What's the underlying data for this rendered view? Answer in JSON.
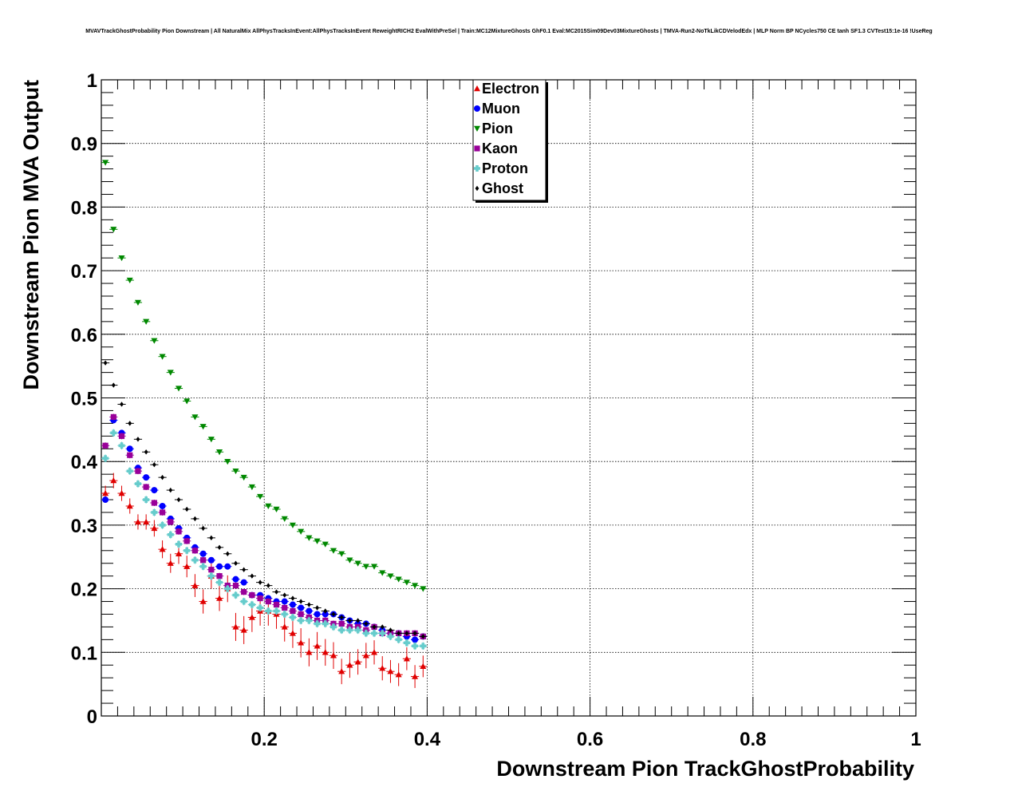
{
  "title": "MVAVTrackGhostProbability Pion Downstream | All NaturalMix AllPhysTracksInEvent:AllPhysTracksInEvent ReweightRICH2 EvalWithPreSel | Train:MC12MixtureGhosts GhF0.1 Eval:MC2015Sim09Dev03MixtureGhosts | TMVA-Run2-NoTkLikCDVelodEdx | MLP Norm BP NCycles750 CE tanh SF1.3 CVTest15:1e-16 !UseReg",
  "chart_data": {
    "type": "scatter",
    "title": "MVAVTrackGhostProbability Pion Downstream | All NaturalMix AllPhysTracksInEvent:AllPhysTracksInEvent ReweightRICH2 EvalWithPreSel | Train:MC12MixtureGhosts GhF0.1 Eval:MC2015Sim09Dev03MixtureGhosts | TMVA-Run2-NoTkLikCDVelodEdx | MLP Norm BP NCycles750 CE tanh SF1.3 CVTest15:1e-16 !UseReg",
    "xlabel": "Downstream Pion TrackGhostProbability",
    "ylabel": "Downstream Pion MVA Output",
    "xlim": [
      0.0,
      1.0
    ],
    "ylim": [
      0.0,
      1.0
    ],
    "x_ticks": [
      "0.2",
      "0.4",
      "0.6",
      "0.8",
      "1"
    ],
    "y_ticks": [
      "0",
      "0.1",
      "0.2",
      "0.3",
      "0.4",
      "0.5",
      "0.6",
      "0.7",
      "0.8",
      "0.9",
      "1"
    ],
    "grid": true,
    "legend_position": "top-center",
    "x": [
      0.005,
      0.015,
      0.025,
      0.035,
      0.045,
      0.055,
      0.065,
      0.075,
      0.085,
      0.095,
      0.105,
      0.115,
      0.125,
      0.135,
      0.145,
      0.155,
      0.165,
      0.175,
      0.185,
      0.195,
      0.205,
      0.215,
      0.225,
      0.235,
      0.245,
      0.255,
      0.265,
      0.275,
      0.285,
      0.295,
      0.305,
      0.315,
      0.325,
      0.335,
      0.345,
      0.355,
      0.365,
      0.375,
      0.385,
      0.395
    ],
    "series": [
      {
        "name": "Electron",
        "color": "#e00000",
        "marker": "triangle-up",
        "values": [
          0.35,
          0.37,
          0.35,
          0.33,
          0.305,
          0.305,
          0.295,
          0.262,
          0.24,
          0.255,
          0.235,
          0.205,
          0.18,
          0.22,
          0.185,
          0.2,
          0.14,
          0.135,
          0.155,
          0.165,
          0.165,
          0.16,
          0.14,
          0.13,
          0.115,
          0.1,
          0.11,
          0.1,
          0.095,
          0.07,
          0.08,
          0.085,
          0.095,
          0.1,
          0.075,
          0.07,
          0.065,
          0.09,
          0.062,
          0.078
        ],
        "errors": [
          0.012,
          0.012,
          0.012,
          0.012,
          0.012,
          0.012,
          0.013,
          0.014,
          0.015,
          0.016,
          0.017,
          0.018,
          0.019,
          0.02,
          0.02,
          0.021,
          0.022,
          0.022,
          0.023,
          0.023,
          0.023,
          0.023,
          0.023,
          0.023,
          0.023,
          0.022,
          0.022,
          0.021,
          0.021,
          0.02,
          0.02,
          0.02,
          0.02,
          0.019,
          0.019,
          0.018,
          0.018,
          0.018,
          0.018,
          0.017
        ]
      },
      {
        "name": "Muon",
        "color": "#0000ff",
        "marker": "circle",
        "values": [
          0.34,
          0.465,
          0.445,
          0.42,
          0.39,
          0.375,
          0.355,
          0.33,
          0.31,
          0.295,
          0.28,
          0.265,
          0.255,
          0.245,
          0.235,
          0.235,
          0.215,
          0.21,
          0.19,
          0.19,
          0.185,
          0.18,
          0.18,
          0.175,
          0.17,
          0.165,
          0.16,
          0.16,
          0.16,
          0.155,
          0.15,
          0.145,
          0.145,
          0.14,
          0.135,
          0.13,
          0.13,
          0.125,
          0.12,
          0.125
        ],
        "errors": [
          0.004,
          0.004,
          0.004,
          0.004,
          0.004,
          0.004,
          0.004,
          0.004,
          0.004,
          0.004,
          0.004,
          0.004,
          0.004,
          0.004,
          0.004,
          0.004,
          0.004,
          0.004,
          0.004,
          0.004,
          0.004,
          0.004,
          0.004,
          0.004,
          0.004,
          0.004,
          0.004,
          0.004,
          0.004,
          0.004,
          0.004,
          0.004,
          0.004,
          0.004,
          0.004,
          0.004,
          0.004,
          0.004,
          0.004,
          0.004
        ]
      },
      {
        "name": "Pion",
        "color": "#008800",
        "marker": "triangle-down",
        "values": [
          0.87,
          0.765,
          0.72,
          0.685,
          0.65,
          0.62,
          0.59,
          0.565,
          0.54,
          0.515,
          0.495,
          0.47,
          0.455,
          0.435,
          0.415,
          0.4,
          0.385,
          0.375,
          0.36,
          0.345,
          0.33,
          0.325,
          0.31,
          0.3,
          0.29,
          0.28,
          0.275,
          0.27,
          0.26,
          0.255,
          0.245,
          0.24,
          0.235,
          0.235,
          0.225,
          0.22,
          0.215,
          0.21,
          0.205,
          0.2
        ],
        "errors": [
          0.002,
          0.002,
          0.002,
          0.002,
          0.002,
          0.002,
          0.002,
          0.002,
          0.002,
          0.002,
          0.002,
          0.002,
          0.002,
          0.002,
          0.002,
          0.002,
          0.002,
          0.002,
          0.002,
          0.002,
          0.002,
          0.002,
          0.002,
          0.002,
          0.002,
          0.002,
          0.002,
          0.002,
          0.002,
          0.002,
          0.002,
          0.002,
          0.002,
          0.002,
          0.002,
          0.002,
          0.002,
          0.002,
          0.002,
          0.002
        ]
      },
      {
        "name": "Kaon",
        "color": "#990099",
        "marker": "square",
        "values": [
          0.425,
          0.47,
          0.44,
          0.41,
          0.385,
          0.36,
          0.335,
          0.32,
          0.305,
          0.29,
          0.275,
          0.26,
          0.245,
          0.23,
          0.22,
          0.205,
          0.205,
          0.195,
          0.19,
          0.185,
          0.18,
          0.175,
          0.17,
          0.165,
          0.16,
          0.155,
          0.15,
          0.15,
          0.145,
          0.145,
          0.14,
          0.14,
          0.135,
          0.14,
          0.13,
          0.13,
          0.13,
          0.13,
          0.13,
          0.125
        ],
        "errors": [
          0.005,
          0.005,
          0.005,
          0.005,
          0.005,
          0.005,
          0.005,
          0.005,
          0.005,
          0.005,
          0.005,
          0.005,
          0.005,
          0.005,
          0.005,
          0.005,
          0.005,
          0.005,
          0.005,
          0.005,
          0.005,
          0.005,
          0.005,
          0.005,
          0.005,
          0.005,
          0.005,
          0.005,
          0.005,
          0.005,
          0.005,
          0.005,
          0.005,
          0.005,
          0.005,
          0.005,
          0.005,
          0.005,
          0.005,
          0.005
        ]
      },
      {
        "name": "Proton",
        "color": "#66cccc",
        "marker": "cross",
        "values": [
          0.405,
          0.445,
          0.425,
          0.385,
          0.365,
          0.34,
          0.32,
          0.3,
          0.285,
          0.27,
          0.26,
          0.245,
          0.235,
          0.22,
          0.21,
          0.2,
          0.19,
          0.18,
          0.175,
          0.17,
          0.165,
          0.165,
          0.16,
          0.155,
          0.15,
          0.15,
          0.145,
          0.145,
          0.14,
          0.135,
          0.135,
          0.135,
          0.13,
          0.13,
          0.13,
          0.125,
          0.12,
          0.115,
          0.11,
          0.11
        ],
        "errors": [
          0.006,
          0.006,
          0.006,
          0.006,
          0.006,
          0.006,
          0.006,
          0.006,
          0.006,
          0.006,
          0.006,
          0.006,
          0.006,
          0.006,
          0.006,
          0.006,
          0.006,
          0.006,
          0.006,
          0.006,
          0.006,
          0.006,
          0.006,
          0.006,
          0.006,
          0.006,
          0.006,
          0.006,
          0.006,
          0.006,
          0.006,
          0.006,
          0.006,
          0.006,
          0.006,
          0.006,
          0.006,
          0.006,
          0.006,
          0.006
        ]
      },
      {
        "name": "Ghost",
        "color": "#000000",
        "marker": "diamond",
        "values": [
          0.555,
          0.52,
          0.49,
          0.46,
          0.435,
          0.415,
          0.395,
          0.375,
          0.355,
          0.34,
          0.325,
          0.31,
          0.295,
          0.28,
          0.265,
          0.255,
          0.24,
          0.23,
          0.22,
          0.21,
          0.205,
          0.195,
          0.19,
          0.185,
          0.18,
          0.175,
          0.17,
          0.165,
          0.16,
          0.155,
          0.15,
          0.15,
          0.145,
          0.14,
          0.14,
          0.135,
          0.13,
          0.13,
          0.13,
          0.125
        ],
        "errors": [
          0.002,
          0.002,
          0.002,
          0.002,
          0.002,
          0.002,
          0.002,
          0.002,
          0.002,
          0.002,
          0.002,
          0.002,
          0.002,
          0.002,
          0.002,
          0.002,
          0.002,
          0.002,
          0.002,
          0.002,
          0.002,
          0.002,
          0.002,
          0.002,
          0.002,
          0.002,
          0.002,
          0.002,
          0.002,
          0.002,
          0.002,
          0.002,
          0.002,
          0.002,
          0.002,
          0.002,
          0.002,
          0.002,
          0.002,
          0.002
        ]
      }
    ]
  }
}
